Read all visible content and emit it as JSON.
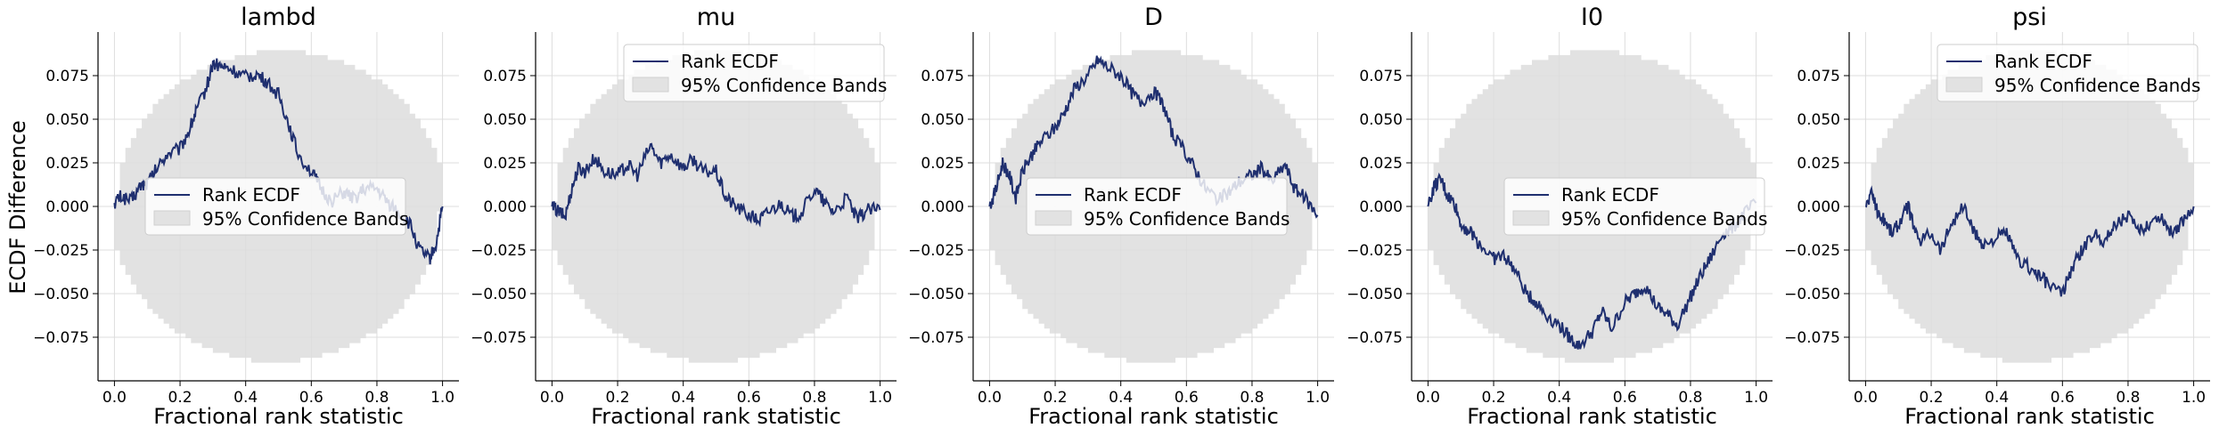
{
  "figure": {
    "ylabel": "ECDF Difference",
    "xlabel": "Fractional rank statistic",
    "colors": {
      "ecdf_line": "#1f2f6f",
      "band_fill": "#e2e2e2",
      "grid": "#dddddd",
      "axis": "#000000"
    }
  },
  "chart_data": [
    {
      "type": "line",
      "title": "lambd",
      "xlabel": "Fractional rank statistic",
      "ylabel": "ECDF Difference",
      "xlim": [
        -0.05,
        1.05
      ],
      "ylim": [
        -0.1,
        0.1
      ],
      "xticks": [
        "0.0",
        "0.2",
        "0.4",
        "0.6",
        "0.8",
        "1.0"
      ],
      "yticks": [
        "0.075",
        "0.050",
        "0.025",
        "0.000",
        "−0.025",
        "−0.050",
        "−0.075"
      ],
      "grid": true,
      "legend": {
        "position": "center-right",
        "entries": [
          "Rank ECDF",
          "95% Confidence Bands"
        ]
      },
      "band_halfwidth_peak": 0.088,
      "series": [
        {
          "name": "Rank ECDF",
          "x": [
            0,
            0.02,
            0.05,
            0.08,
            0.1,
            0.13,
            0.16,
            0.2,
            0.23,
            0.25,
            0.28,
            0.3,
            0.33,
            0.36,
            0.4,
            0.43,
            0.46,
            0.5,
            0.53,
            0.56,
            0.6,
            0.63,
            0.66,
            0.7,
            0.73,
            0.76,
            0.8,
            0.83,
            0.86,
            0.9,
            0.93,
            0.96,
            0.98,
            1.0
          ],
          "y": [
            0.002,
            0.006,
            0.003,
            0.012,
            0.013,
            0.022,
            0.03,
            0.033,
            0.045,
            0.055,
            0.068,
            0.082,
            0.08,
            0.078,
            0.074,
            0.076,
            0.072,
            0.064,
            0.048,
            0.03,
            0.02,
            0.01,
            0.003,
            0.008,
            0.004,
            0.01,
            0.01,
            0.003,
            -0.002,
            -0.01,
            -0.025,
            -0.03,
            -0.022,
            0.0
          ]
        },
        {
          "name": "95% Confidence Bands"
        }
      ]
    },
    {
      "type": "line",
      "title": "mu",
      "xlabel": "Fractional rank statistic",
      "xlim": [
        -0.05,
        1.05
      ],
      "ylim": [
        -0.1,
        0.1
      ],
      "xticks": [
        "0.0",
        "0.2",
        "0.4",
        "0.6",
        "0.8",
        "1.0"
      ],
      "yticks": [
        "0.075",
        "0.050",
        "0.025",
        "0.000",
        "−0.025",
        "−0.050",
        "−0.075"
      ],
      "grid": true,
      "legend": {
        "position": "upper-right",
        "entries": [
          "Rank ECDF",
          "95% Confidence Bands"
        ]
      },
      "band_halfwidth_peak": 0.088,
      "series": [
        {
          "name": "Rank ECDF",
          "x": [
            0,
            0.02,
            0.04,
            0.06,
            0.08,
            0.1,
            0.13,
            0.16,
            0.2,
            0.23,
            0.26,
            0.3,
            0.33,
            0.36,
            0.4,
            0.43,
            0.46,
            0.5,
            0.53,
            0.56,
            0.6,
            0.63,
            0.66,
            0.7,
            0.73,
            0.76,
            0.8,
            0.83,
            0.86,
            0.9,
            0.93,
            0.96,
            1.0
          ],
          "y": [
            0.0,
            -0.003,
            -0.006,
            0.01,
            0.022,
            0.02,
            0.028,
            0.02,
            0.018,
            0.024,
            0.018,
            0.035,
            0.025,
            0.03,
            0.022,
            0.027,
            0.02,
            0.02,
            0.005,
            0.0,
            -0.005,
            -0.008,
            -0.003,
            0.002,
            -0.006,
            -0.004,
            0.01,
            0.002,
            -0.003,
            0.005,
            -0.008,
            -0.002,
            -0.002
          ]
        },
        {
          "name": "95% Confidence Bands"
        }
      ]
    },
    {
      "type": "line",
      "title": "D",
      "xlabel": "Fractional rank statistic",
      "xlim": [
        -0.05,
        1.05
      ],
      "ylim": [
        -0.1,
        0.1
      ],
      "xticks": [
        "0.0",
        "0.2",
        "0.4",
        "0.6",
        "0.8",
        "1.0"
      ],
      "yticks": [
        "0.075",
        "0.050",
        "0.025",
        "0.000",
        "−0.025",
        "−0.050",
        "−0.075"
      ],
      "grid": true,
      "legend": {
        "position": "center",
        "entries": [
          "Rank ECDF",
          "95% Confidence Bands"
        ]
      },
      "band_halfwidth_peak": 0.088,
      "series": [
        {
          "name": "Rank ECDF",
          "x": [
            0,
            0.02,
            0.04,
            0.06,
            0.08,
            0.1,
            0.13,
            0.16,
            0.2,
            0.23,
            0.26,
            0.3,
            0.33,
            0.36,
            0.4,
            0.43,
            0.46,
            0.5,
            0.53,
            0.56,
            0.6,
            0.63,
            0.66,
            0.7,
            0.73,
            0.76,
            0.8,
            0.83,
            0.86,
            0.9,
            0.93,
            0.96,
            1.0
          ],
          "y": [
            0.0,
            0.01,
            0.025,
            0.018,
            0.005,
            0.02,
            0.03,
            0.038,
            0.045,
            0.055,
            0.068,
            0.075,
            0.084,
            0.08,
            0.075,
            0.066,
            0.06,
            0.066,
            0.058,
            0.04,
            0.03,
            0.02,
            0.01,
            0.004,
            0.008,
            0.014,
            0.018,
            0.022,
            0.014,
            0.024,
            0.01,
            0.005,
            -0.005
          ]
        },
        {
          "name": "95% Confidence Bands"
        }
      ]
    },
    {
      "type": "line",
      "title": "I0",
      "xlabel": "Fractional rank statistic",
      "xlim": [
        -0.05,
        1.05
      ],
      "ylim": [
        -0.1,
        0.1
      ],
      "xticks": [
        "0.0",
        "0.2",
        "0.4",
        "0.6",
        "0.8",
        "1.0"
      ],
      "yticks": [
        "0.075",
        "0.050",
        "0.025",
        "0.000",
        "−0.025",
        "−0.050",
        "−0.075"
      ],
      "grid": true,
      "legend": {
        "position": "center-right",
        "entries": [
          "Rank ECDF",
          "95% Confidence Bands"
        ]
      },
      "band_halfwidth_peak": 0.088,
      "series": [
        {
          "name": "Rank ECDF",
          "x": [
            0,
            0.02,
            0.04,
            0.06,
            0.08,
            0.1,
            0.13,
            0.16,
            0.2,
            0.23,
            0.26,
            0.3,
            0.33,
            0.36,
            0.4,
            0.43,
            0.46,
            0.5,
            0.53,
            0.56,
            0.6,
            0.63,
            0.66,
            0.7,
            0.73,
            0.76,
            0.8,
            0.83,
            0.86,
            0.9,
            0.93,
            0.96,
            1.0
          ],
          "y": [
            0.0,
            0.012,
            0.015,
            0.006,
            0.002,
            -0.01,
            -0.015,
            -0.022,
            -0.03,
            -0.028,
            -0.035,
            -0.05,
            -0.055,
            -0.062,
            -0.068,
            -0.075,
            -0.08,
            -0.072,
            -0.06,
            -0.07,
            -0.055,
            -0.05,
            -0.045,
            -0.058,
            -0.062,
            -0.068,
            -0.052,
            -0.04,
            -0.03,
            -0.015,
            -0.012,
            -0.005,
            0.002
          ]
        },
        {
          "name": "95% Confidence Bands"
        }
      ]
    },
    {
      "type": "line",
      "title": "psi",
      "xlabel": "Fractional rank statistic",
      "xlim": [
        -0.05,
        1.05
      ],
      "ylim": [
        -0.1,
        0.1
      ],
      "xticks": [
        "0.0",
        "0.2",
        "0.4",
        "0.6",
        "0.8",
        "1.0"
      ],
      "yticks": [
        "0.075",
        "0.050",
        "0.025",
        "0.000",
        "−0.025",
        "−0.050",
        "−0.075"
      ],
      "grid": true,
      "legend": {
        "position": "upper-right",
        "entries": [
          "Rank ECDF",
          "95% Confidence Bands"
        ]
      },
      "band_halfwidth_peak": 0.088,
      "series": [
        {
          "name": "Rank ECDF",
          "x": [
            0,
            0.02,
            0.04,
            0.06,
            0.08,
            0.1,
            0.13,
            0.16,
            0.2,
            0.23,
            0.26,
            0.3,
            0.33,
            0.36,
            0.4,
            0.43,
            0.46,
            0.5,
            0.53,
            0.56,
            0.6,
            0.63,
            0.66,
            0.7,
            0.73,
            0.76,
            0.8,
            0.83,
            0.86,
            0.9,
            0.93,
            0.96,
            1.0
          ],
          "y": [
            0.0,
            0.008,
            -0.005,
            -0.008,
            -0.015,
            -0.01,
            0.0,
            -0.02,
            -0.015,
            -0.025,
            -0.01,
            0.0,
            -0.015,
            -0.022,
            -0.018,
            -0.015,
            -0.03,
            -0.035,
            -0.04,
            -0.045,
            -0.05,
            -0.035,
            -0.025,
            -0.015,
            -0.02,
            -0.01,
            -0.005,
            -0.015,
            -0.01,
            -0.005,
            -0.015,
            -0.01,
            0.0
          ]
        },
        {
          "name": "95% Confidence Bands"
        }
      ]
    }
  ]
}
